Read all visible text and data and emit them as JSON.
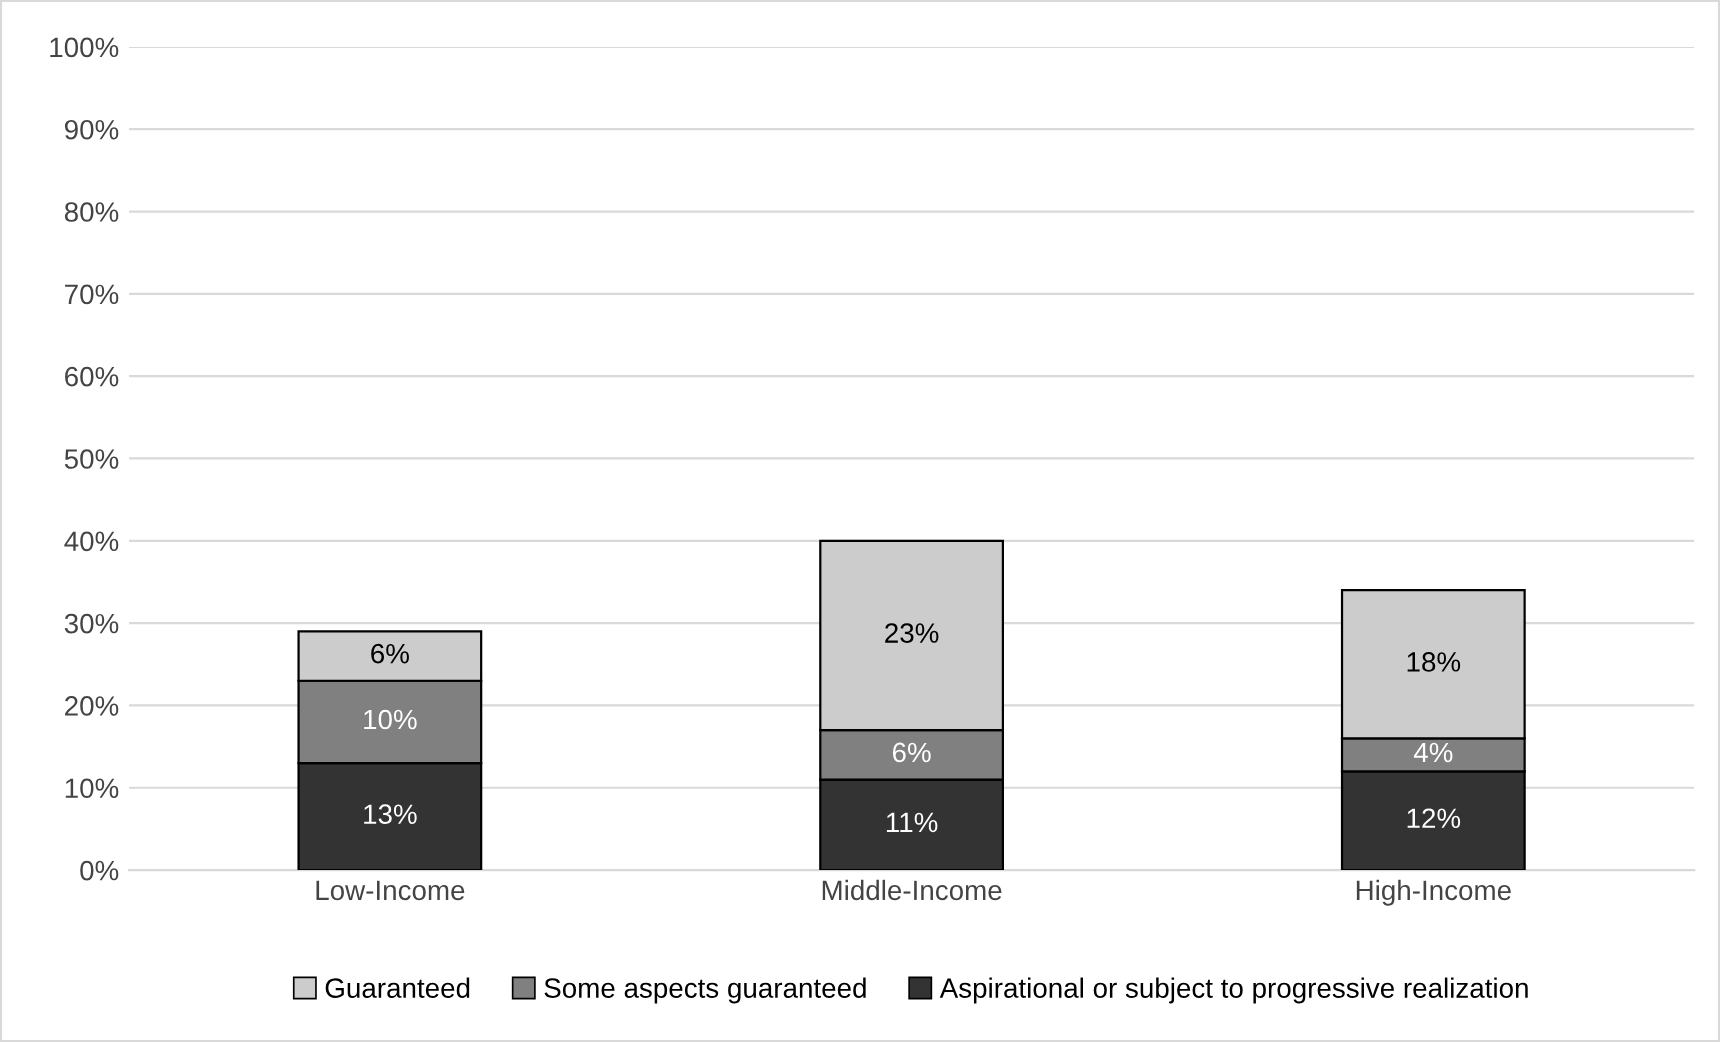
{
  "chart_data": {
    "type": "bar",
    "stacked": true,
    "categories": [
      "Low-Income",
      "Middle-Income",
      "High-Income"
    ],
    "series": [
      {
        "name": "Aspirational or subject to progressive realization",
        "color": "#333333",
        "values": [
          13,
          11,
          12
        ],
        "value_labels": [
          "13%",
          "11%",
          "12%"
        ]
      },
      {
        "name": "Some aspects guaranteed",
        "color": "#808080",
        "values": [
          10,
          6,
          4
        ],
        "value_labels": [
          "10%",
          "6%",
          "4%"
        ]
      },
      {
        "name": "Guaranteed",
        "color": "#cccccc",
        "values": [
          6,
          23,
          18
        ],
        "value_labels": [
          "6%",
          "23%",
          "18%"
        ]
      }
    ],
    "ylim": [
      0,
      100
    ],
    "yticks": [
      {
        "value": 0,
        "label": "0%"
      },
      {
        "value": 10,
        "label": "10%"
      },
      {
        "value": 20,
        "label": "20%"
      },
      {
        "value": 30,
        "label": "30%"
      },
      {
        "value": 40,
        "label": "40%"
      },
      {
        "value": 50,
        "label": "50%"
      },
      {
        "value": 60,
        "label": "60%"
      },
      {
        "value": 70,
        "label": "70%"
      },
      {
        "value": 80,
        "label": "80%"
      },
      {
        "value": 90,
        "label": "90%"
      },
      {
        "value": 100,
        "label": "100%"
      }
    ],
    "grid": "y",
    "legend": "bottom"
  }
}
